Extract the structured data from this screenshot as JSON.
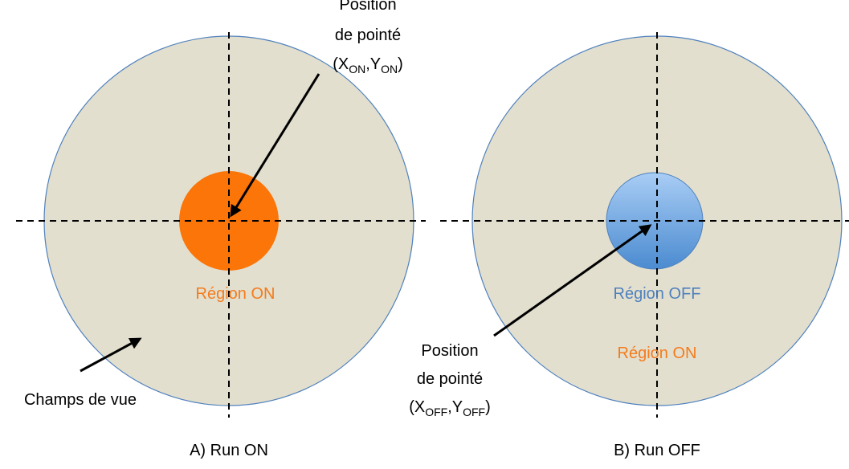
{
  "panels": [
    {
      "caption": "A) Run ON",
      "field_label": "Champs de vue",
      "regions": [
        "Région ON"
      ],
      "pointing": {
        "lines": [
          "Position",
          "de pointé"
        ],
        "coords": [
          "(X",
          "ON",
          ",Y",
          "ON",
          ")"
        ]
      }
    },
    {
      "caption": "B) Run OFF",
      "regions": [
        "Région OFF",
        "Région ON"
      ],
      "pointing": {
        "lines": [
          "Position",
          "de pointé"
        ],
        "coords": [
          "(X",
          "OFF",
          ",Y",
          "OFF",
          ")"
        ]
      }
    }
  ]
}
